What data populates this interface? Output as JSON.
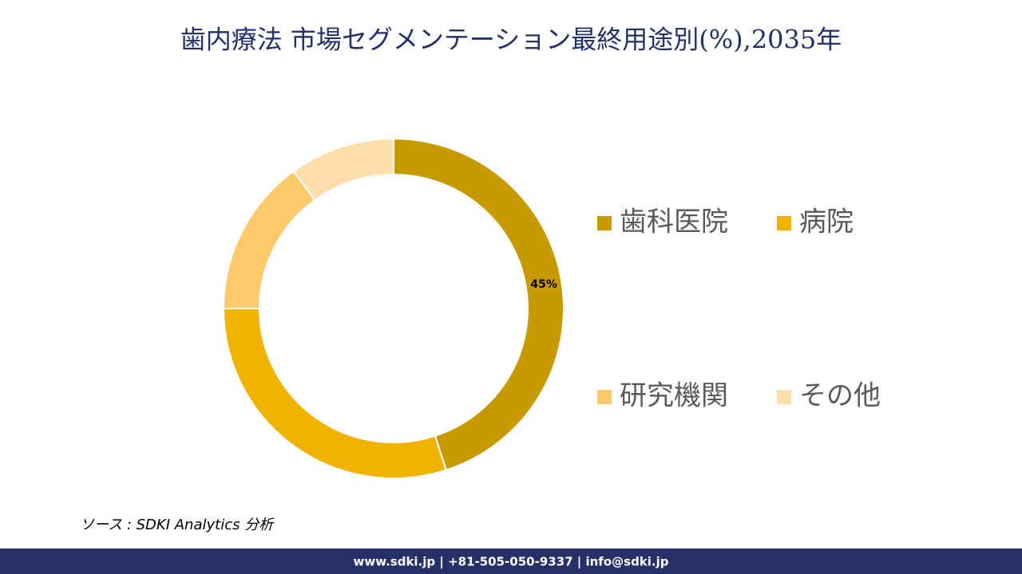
{
  "chart_data": {
    "type": "donut",
    "title": "歯内療法 市場セグメンテーション最終用途別(%),2035年",
    "categories": [
      "歯科医院",
      "病院",
      "研究機関",
      "その他"
    ],
    "values": [
      45,
      30,
      15,
      10
    ],
    "value_labels": [
      "45%",
      null,
      null,
      null
    ],
    "colors": [
      "#c89a00",
      "#f0b400",
      "#fdc96a",
      "#ffdeaa"
    ],
    "legend": "right"
  },
  "source": "ソース : SDKI Analytics 分析",
  "footer": "www.sdki.jp | +81-505-050-9337 | info@sdki.jp"
}
